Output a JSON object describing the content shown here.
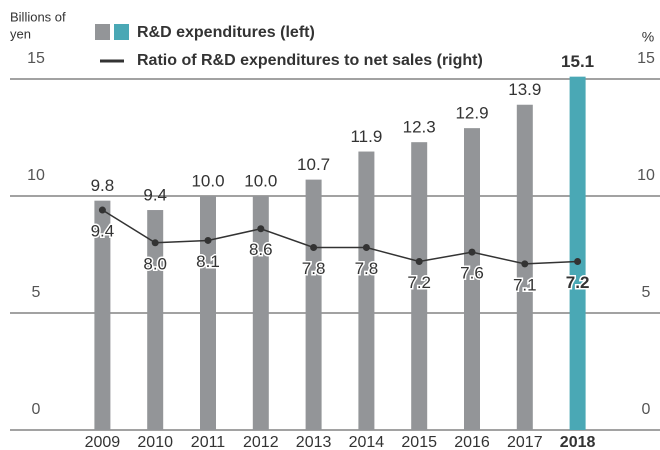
{
  "chart_data": {
    "type": "bar_line",
    "ylabel": [
      "Billions of",
      "yen"
    ],
    "y2label": "%",
    "categories": [
      "2009",
      "2010",
      "2011",
      "2012",
      "2013",
      "2014",
      "2015",
      "2016",
      "2017",
      "2018"
    ],
    "series": [
      {
        "name": "R&D expenditures (left)",
        "type": "bar",
        "color": "#939598",
        "colors": [
          "#939598",
          "#939598",
          "#939598",
          "#939598",
          "#939598",
          "#939598",
          "#939598",
          "#939598",
          "#939598",
          "#4aa8b5"
        ],
        "values": [
          9.8,
          9.4,
          10.0,
          10.0,
          10.7,
          11.9,
          12.3,
          12.9,
          13.9,
          15.1
        ],
        "value_labels": [
          "9.8",
          "9.4",
          "10.0",
          "10.0",
          "10.7",
          "11.9",
          "12.3",
          "12.9",
          "13.9",
          "15.1"
        ]
      },
      {
        "name": "Ratio of R&D expenditures to net sales (right)",
        "type": "line",
        "axis": "y2",
        "color": "#333333",
        "values": [
          9.4,
          8.0,
          8.1,
          8.6,
          7.8,
          7.8,
          7.2,
          7.6,
          7.1,
          7.2
        ],
        "value_labels": [
          "9.4",
          "8.0",
          "8.1",
          "8.6",
          "7.8",
          "7.8",
          "7.2",
          "7.6",
          "7.1",
          "7.2"
        ]
      }
    ],
    "ylim": [
      0,
      15
    ],
    "yticks": [
      0,
      5,
      10,
      15
    ],
    "y2lim": [
      0,
      15
    ],
    "y2ticks": [
      0,
      5,
      10,
      15
    ],
    "grid": true
  }
}
